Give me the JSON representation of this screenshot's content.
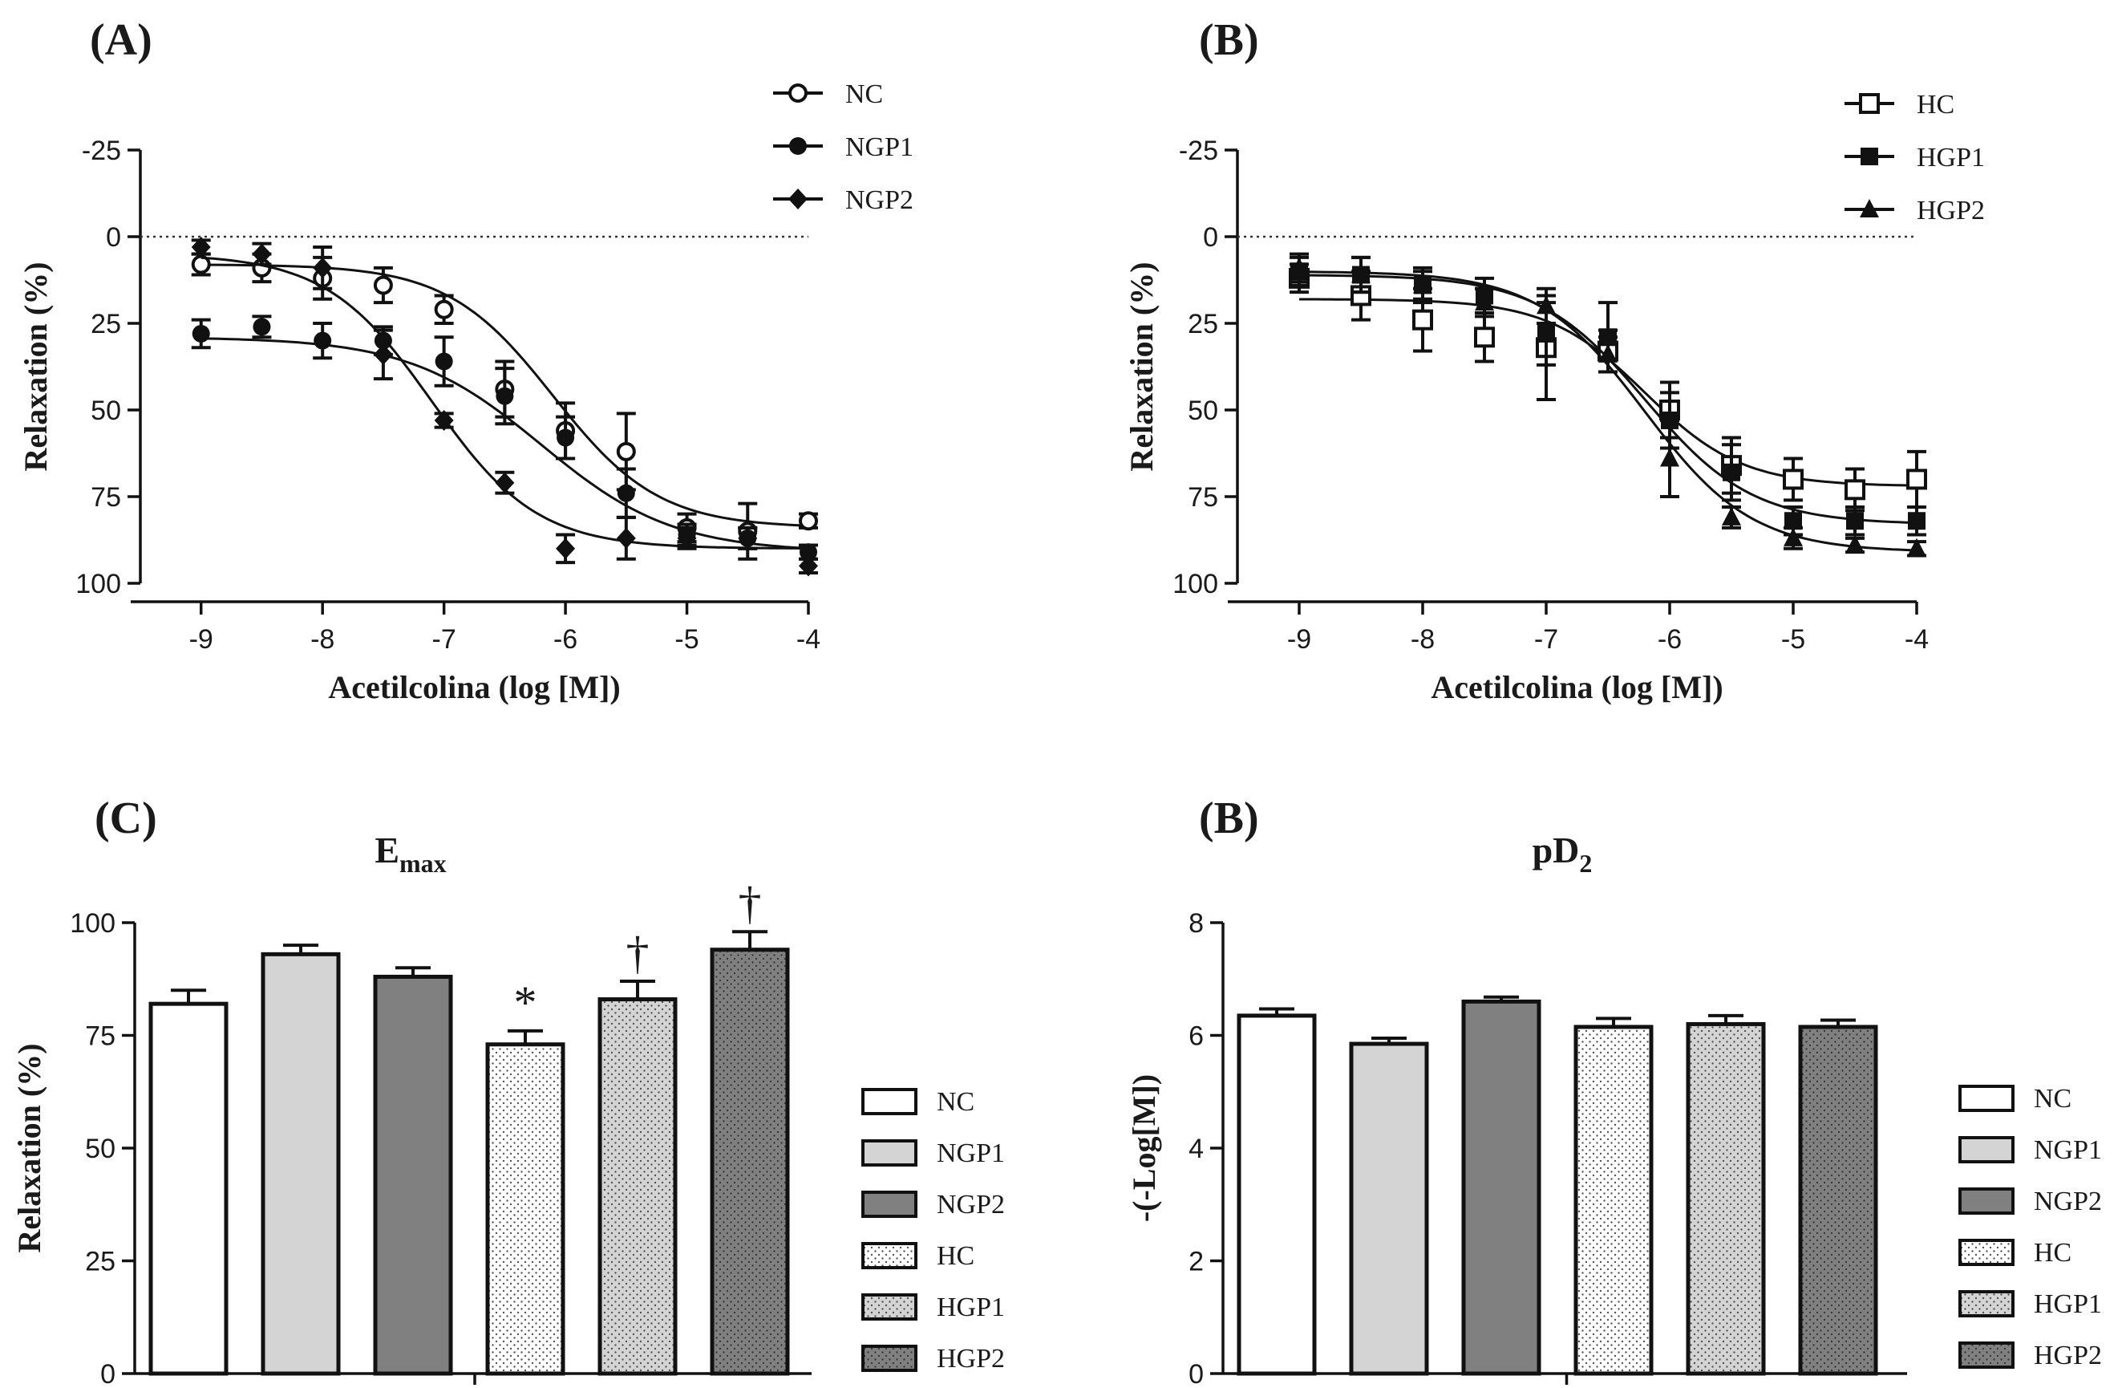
{
  "styles": {
    "NC": {
      "fill": "#ffffff",
      "pattern": "none"
    },
    "NGP1": {
      "fill": "#d4d4d4",
      "pattern": "none"
    },
    "NGP2": {
      "fill": "#808080",
      "pattern": "none"
    },
    "HC": {
      "fill": "#ffffff",
      "pattern": "dots"
    },
    "HGP1": {
      "fill": "#d4d4d4",
      "pattern": "dots"
    },
    "HGP2": {
      "fill": "#808080",
      "pattern": "dots"
    }
  },
  "chart_data": [
    {
      "type": "line",
      "panel_label": "(A)",
      "xlabel": "Acetilcolina (log [M])",
      "ylabel": "Relaxation (%)",
      "xlim": [
        -9.5,
        -4
      ],
      "ylim": [
        -25,
        100
      ],
      "y_inverted": true,
      "xticks": [
        -9,
        -8,
        -7,
        -6,
        -5,
        -4
      ],
      "xtick_labels": [
        "-9",
        "-8",
        "-7",
        "-6",
        "-5",
        "-4"
      ],
      "yticks": [
        -25,
        0,
        25,
        50,
        75,
        100
      ],
      "ytick_labels": [
        "-25",
        "0",
        "25",
        "50",
        "75",
        "100"
      ],
      "reference_line": 0,
      "legend": [
        "NC",
        "NGP1",
        "NGP2"
      ],
      "x": [
        -9,
        -8.5,
        -8,
        -7.5,
        -7,
        -6.5,
        -6,
        -5.5,
        -5,
        -4.5,
        -4
      ],
      "series": [
        {
          "name": "NC",
          "marker": "open-circle",
          "values": [
            8,
            9,
            12,
            14,
            21,
            44,
            56,
            62,
            84,
            85,
            82
          ],
          "errors": [
            3,
            4,
            6,
            5,
            4,
            8,
            8,
            11,
            4,
            8,
            2
          ],
          "fit": {
            "top": 8,
            "bottom": 84,
            "logec50": -6.1,
            "hill": 1.0
          }
        },
        {
          "name": "NGP1",
          "marker": "filled-circle",
          "values": [
            28,
            26,
            30,
            30,
            36,
            46,
            58,
            74,
            86,
            87,
            91
          ],
          "errors": [
            4,
            3,
            5,
            4,
            7,
            8,
            6,
            7,
            3,
            3,
            2
          ],
          "fit": {
            "top": 29,
            "bottom": 91,
            "logec50": -6.2,
            "hill": 0.8
          }
        },
        {
          "name": "NGP2",
          "marker": "filled-diamond",
          "values": [
            3,
            5,
            9,
            34,
            53,
            71,
            90,
            87,
            87,
            87,
            95
          ],
          "errors": [
            2,
            3,
            6,
            7,
            2,
            3,
            4,
            6,
            3,
            3,
            2
          ],
          "fit": {
            "top": 5,
            "bottom": 90,
            "logec50": -7.1,
            "hill": 1.0
          }
        }
      ]
    },
    {
      "type": "line",
      "panel_label": "(B)",
      "xlabel": "Acetilcolina (log [M])",
      "ylabel": "Relaxation (%)",
      "xlim": [
        -9.5,
        -4
      ],
      "ylim": [
        -25,
        100
      ],
      "y_inverted": true,
      "xticks": [
        -9,
        -8,
        -7,
        -6,
        -5,
        -4
      ],
      "xtick_labels": [
        "-9",
        "-8",
        "-7",
        "-6",
        "-5",
        "-4"
      ],
      "yticks": [
        -25,
        0,
        25,
        50,
        75,
        100
      ],
      "ytick_labels": [
        "-25",
        "0",
        "25",
        "50",
        "75",
        "100"
      ],
      "reference_line": 0,
      "legend": [
        "HC",
        "HGP1",
        "HGP2"
      ],
      "x": [
        -9,
        -8.5,
        -8,
        -7.5,
        -7,
        -6.5,
        -6,
        -5.5,
        -5,
        -4.5,
        -4
      ],
      "series": [
        {
          "name": "HC",
          "marker": "open-square",
          "values": [
            12,
            17,
            24,
            29,
            32,
            33,
            50,
            66,
            70,
            73,
            70
          ],
          "errors": [
            4,
            7,
            9,
            7,
            15,
            6,
            8,
            8,
            6,
            6,
            8
          ],
          "fit": {
            "top": 18,
            "bottom": 72,
            "logec50": -6.2,
            "hill": 1.1
          }
        },
        {
          "name": "HGP1",
          "marker": "filled-square",
          "values": [
            10,
            11,
            14,
            17,
            28,
            29,
            53,
            68,
            82,
            82,
            82
          ],
          "errors": [
            4,
            5,
            5,
            5,
            9,
            10,
            8,
            8,
            4,
            4,
            4
          ],
          "fit": {
            "top": 11,
            "bottom": 83,
            "logec50": -6.2,
            "hill": 1.0
          }
        },
        {
          "name": "HGP2",
          "marker": "filled-triangle",
          "values": [
            9,
            11,
            14,
            19,
            20,
            34,
            64,
            81,
            87,
            89,
            90
          ],
          "errors": [
            4,
            5,
            4,
            4,
            5,
            5,
            11,
            3,
            3,
            2,
            2
          ],
          "fit": {
            "top": 10,
            "bottom": 91,
            "logec50": -6.2,
            "hill": 1.0
          }
        }
      ]
    },
    {
      "type": "bar",
      "panel_label": "(C)",
      "title_main": "E",
      "title_sub": "max",
      "ylabel": "Relaxation (%)",
      "ylim": [
        0,
        100
      ],
      "yticks": [
        0,
        25,
        50,
        75,
        100
      ],
      "ytick_labels": [
        "0",
        "25",
        "50",
        "75",
        "100"
      ],
      "categories": [
        "NC",
        "NGP1",
        "NGP2",
        "HC",
        "HGP1",
        "HGP2"
      ],
      "values": [
        82,
        93,
        88,
        73,
        83,
        94
      ],
      "errors": [
        3,
        2,
        2,
        3,
        4,
        4
      ],
      "annotations": [
        "",
        "",
        "",
        "*",
        "†",
        "†"
      ],
      "legend": [
        "NC",
        "NGP1",
        "NGP2",
        "HC",
        "HGP1",
        "HGP2"
      ]
    },
    {
      "type": "bar",
      "panel_label": "(B)",
      "title_main": "pD",
      "title_sub": "2",
      "ylabel": "-(-Log[M])",
      "ylim": [
        0,
        8
      ],
      "yticks": [
        0,
        2,
        4,
        6,
        8
      ],
      "ytick_labels": [
        "0",
        "2",
        "4",
        "6",
        "8"
      ],
      "categories": [
        "NC",
        "NGP1",
        "NGP2",
        "HC",
        "HGP1",
        "HGP2"
      ],
      "values": [
        6.35,
        5.85,
        6.6,
        6.15,
        6.2,
        6.15
      ],
      "errors": [
        0.12,
        0.1,
        0.08,
        0.15,
        0.15,
        0.12
      ],
      "annotations": [
        "",
        "",
        "",
        "",
        "",
        ""
      ],
      "legend": [
        "NC",
        "NGP1",
        "NGP2",
        "HC",
        "HGP1",
        "HGP2"
      ]
    }
  ]
}
